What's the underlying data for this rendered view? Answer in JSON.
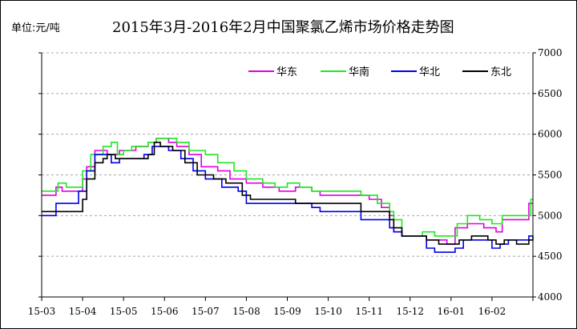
{
  "header": {
    "unit_label": "单位:元/吨",
    "title": "2015年3月-2016年2月中国聚氯乙烯市场价格走势图"
  },
  "chart_data": {
    "type": "line",
    "title": "2015年3月-2016年2月中国聚氯乙烯市场价格走势图",
    "ylabel": "单位:元/吨",
    "ylim": [
      4000,
      7000
    ],
    "yticks": [
      4000,
      4500,
      5000,
      5500,
      6000,
      6500,
      7000
    ],
    "x_ticks": [
      "15-03",
      "15-04",
      "15-05",
      "15-06",
      "15-07",
      "15-08",
      "15-09",
      "15-10",
      "15-11",
      "15-12",
      "16-01",
      "16-02"
    ],
    "grid": true,
    "legend_position": "top-right",
    "series": [
      {
        "name": "华东",
        "color": "#e100e1",
        "points": [
          [
            0,
            5250
          ],
          [
            0.3,
            5250
          ],
          [
            0.35,
            5350
          ],
          [
            0.5,
            5300
          ],
          [
            0.9,
            5300
          ],
          [
            1,
            5450
          ],
          [
            1.1,
            5600
          ],
          [
            1.3,
            5800
          ],
          [
            1.6,
            5750
          ],
          [
            1.9,
            5800
          ],
          [
            2.1,
            5800
          ],
          [
            2.3,
            5850
          ],
          [
            2.6,
            5900
          ],
          [
            2.8,
            5950
          ],
          [
            3.1,
            5900
          ],
          [
            3.3,
            5850
          ],
          [
            3.6,
            5750
          ],
          [
            3.9,
            5600
          ],
          [
            4.3,
            5550
          ],
          [
            4.6,
            5450
          ],
          [
            5,
            5400
          ],
          [
            5.4,
            5350
          ],
          [
            5.8,
            5300
          ],
          [
            6.2,
            5350
          ],
          [
            6.6,
            5300
          ],
          [
            6.8,
            5250
          ],
          [
            7.2,
            5250
          ],
          [
            7.6,
            5250
          ],
          [
            8,
            5200
          ],
          [
            8.3,
            5100
          ],
          [
            8.5,
            5000
          ],
          [
            8.6,
            4800
          ],
          [
            8.8,
            4750
          ],
          [
            9.2,
            4750
          ],
          [
            9.4,
            4700
          ],
          [
            9.6,
            4700
          ],
          [
            9.9,
            4650
          ],
          [
            10.1,
            4850
          ],
          [
            10.4,
            4900
          ],
          [
            10.8,
            4850
          ],
          [
            11.1,
            4800
          ],
          [
            11.25,
            4950
          ],
          [
            11.5,
            4950
          ],
          [
            11.8,
            4950
          ],
          [
            11.9,
            5150
          ],
          [
            12,
            5150
          ]
        ]
      },
      {
        "name": "华南",
        "color": "#22e622",
        "points": [
          [
            0,
            5300
          ],
          [
            0.3,
            5300
          ],
          [
            0.4,
            5400
          ],
          [
            0.6,
            5350
          ],
          [
            0.9,
            5350
          ],
          [
            1,
            5550
          ],
          [
            1.2,
            5750
          ],
          [
            1.5,
            5850
          ],
          [
            1.7,
            5900
          ],
          [
            1.85,
            5750
          ],
          [
            2,
            5800
          ],
          [
            2.2,
            5850
          ],
          [
            2.6,
            5900
          ],
          [
            2.8,
            5950
          ],
          [
            3.1,
            5950
          ],
          [
            3.3,
            5900
          ],
          [
            3.6,
            5800
          ],
          [
            4,
            5750
          ],
          [
            4.3,
            5650
          ],
          [
            4.7,
            5550
          ],
          [
            5,
            5450
          ],
          [
            5.4,
            5400
          ],
          [
            5.7,
            5350
          ],
          [
            6,
            5400
          ],
          [
            6.3,
            5350
          ],
          [
            6.6,
            5300
          ],
          [
            7,
            5300
          ],
          [
            7.4,
            5300
          ],
          [
            7.8,
            5250
          ],
          [
            8.2,
            5150
          ],
          [
            8.5,
            5050
          ],
          [
            8.6,
            4950
          ],
          [
            8.8,
            4750
          ],
          [
            9.1,
            4750
          ],
          [
            9.3,
            4800
          ],
          [
            9.6,
            4750
          ],
          [
            10,
            4750
          ],
          [
            10.15,
            4900
          ],
          [
            10.4,
            5000
          ],
          [
            10.7,
            4950
          ],
          [
            11,
            4900
          ],
          [
            11.25,
            5000
          ],
          [
            11.6,
            5000
          ],
          [
            11.9,
            5000
          ],
          [
            11.95,
            5200
          ],
          [
            12,
            5200
          ]
        ]
      },
      {
        "name": "华北",
        "color": "#0000e6",
        "points": [
          [
            0,
            5000
          ],
          [
            0.3,
            5000
          ],
          [
            0.35,
            5150
          ],
          [
            0.8,
            5150
          ],
          [
            0.9,
            5300
          ],
          [
            1.1,
            5550
          ],
          [
            1.3,
            5750
          ],
          [
            1.5,
            5750
          ],
          [
            1.7,
            5650
          ],
          [
            1.9,
            5700
          ],
          [
            2.3,
            5700
          ],
          [
            2.5,
            5750
          ],
          [
            2.7,
            5850
          ],
          [
            2.9,
            5850
          ],
          [
            3.1,
            5800
          ],
          [
            3.4,
            5700
          ],
          [
            3.7,
            5550
          ],
          [
            4,
            5450
          ],
          [
            4.4,
            5350
          ],
          [
            4.8,
            5300
          ],
          [
            5,
            5150
          ],
          [
            5.4,
            5150
          ],
          [
            6,
            5150
          ],
          [
            6.4,
            5150
          ],
          [
            6.6,
            5100
          ],
          [
            6.8,
            5050
          ],
          [
            7.3,
            5050
          ],
          [
            7.8,
            4950
          ],
          [
            8.2,
            4950
          ],
          [
            8.5,
            4850
          ],
          [
            8.6,
            4800
          ],
          [
            8.8,
            4750
          ],
          [
            9.2,
            4750
          ],
          [
            9.4,
            4600
          ],
          [
            9.6,
            4550
          ],
          [
            10,
            4550
          ],
          [
            10.1,
            4600
          ],
          [
            10.3,
            4700
          ],
          [
            10.7,
            4700
          ],
          [
            11,
            4600
          ],
          [
            11.2,
            4650
          ],
          [
            11.4,
            4700
          ],
          [
            11.8,
            4700
          ],
          [
            11.9,
            4750
          ],
          [
            12,
            4750
          ]
        ]
      },
      {
        "name": "东北",
        "color": "#000000",
        "points": [
          [
            0,
            5050
          ],
          [
            0.9,
            5050
          ],
          [
            1,
            5200
          ],
          [
            1.1,
            5450
          ],
          [
            1.3,
            5650
          ],
          [
            1.5,
            5700
          ],
          [
            1.6,
            5750
          ],
          [
            1.8,
            5700
          ],
          [
            2.2,
            5700
          ],
          [
            2.6,
            5750
          ],
          [
            2.75,
            5900
          ],
          [
            2.9,
            5850
          ],
          [
            3.2,
            5800
          ],
          [
            3.5,
            5650
          ],
          [
            3.8,
            5500
          ],
          [
            4.2,
            5450
          ],
          [
            4.5,
            5400
          ],
          [
            4.9,
            5250
          ],
          [
            5.1,
            5200
          ],
          [
            5.5,
            5200
          ],
          [
            5.8,
            5200
          ],
          [
            6.2,
            5150
          ],
          [
            6.6,
            5150
          ],
          [
            7,
            5150
          ],
          [
            7.5,
            5150
          ],
          [
            7.8,
            5050
          ],
          [
            8.3,
            5050
          ],
          [
            8.5,
            4950
          ],
          [
            8.6,
            4850
          ],
          [
            8.8,
            4750
          ],
          [
            9.2,
            4750
          ],
          [
            9.4,
            4700
          ],
          [
            9.7,
            4650
          ],
          [
            10,
            4650
          ],
          [
            10.2,
            4700
          ],
          [
            10.5,
            4750
          ],
          [
            10.9,
            4700
          ],
          [
            11.1,
            4650
          ],
          [
            11.3,
            4700
          ],
          [
            11.6,
            4650
          ],
          [
            11.9,
            4700
          ],
          [
            12,
            4750
          ]
        ]
      }
    ]
  }
}
